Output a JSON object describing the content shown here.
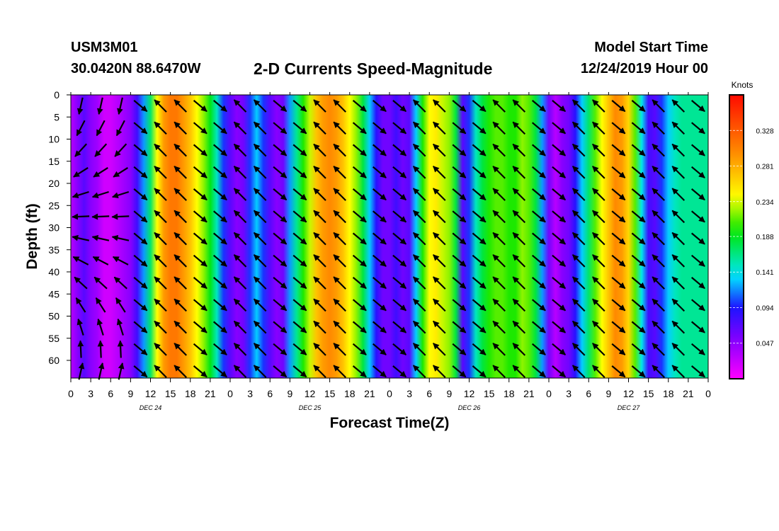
{
  "header": {
    "station": "USM3M01",
    "coords": "30.0420N 88.6470W",
    "title": "2-D Currents Speed-Magnitude",
    "model_start_label": "Model Start Time",
    "model_start_value": "12/24/2019 Hour 00"
  },
  "chart_data": {
    "type": "heatmap",
    "title": "2-D Currents Speed-Magnitude",
    "xlabel": "Forecast Time(Z)",
    "ylabel": "Depth (ft)",
    "x_ticks": [
      "0",
      "3",
      "6",
      "9",
      "12",
      "15",
      "18",
      "21",
      "0",
      "3",
      "6",
      "9",
      "12",
      "15",
      "18",
      "21",
      "0",
      "3",
      "6",
      "9",
      "12",
      "15",
      "18",
      "21",
      "0",
      "3",
      "6",
      "9",
      "12",
      "15",
      "18",
      "21",
      "0"
    ],
    "x_hours": [
      0,
      3,
      6,
      9,
      12,
      15,
      18,
      21,
      24,
      27,
      30,
      33,
      36,
      39,
      42,
      45,
      48,
      51,
      54,
      57,
      60,
      63,
      66,
      69,
      72,
      75,
      78,
      81,
      84,
      87,
      90,
      93,
      96
    ],
    "date_labels": [
      "DEC 24",
      "DEC 25",
      "DEC 26",
      "DEC 27"
    ],
    "date_label_hours": [
      12,
      36,
      60,
      84
    ],
    "xlim_hours": [
      0,
      96
    ],
    "y_ticks": [
      "0",
      "5",
      "10",
      "15",
      "20",
      "25",
      "30",
      "35",
      "40",
      "45",
      "50",
      "55",
      "60"
    ],
    "y_tick_values": [
      0,
      5,
      10,
      15,
      20,
      25,
      30,
      35,
      40,
      45,
      50,
      55,
      60
    ],
    "ylim": [
      0,
      64
    ],
    "y_inverted": true,
    "colorbar": {
      "unit": "Knots",
      "labels": [
        "0.328",
        "0.281",
        "0.234",
        "0.188",
        "0.141",
        "0.094",
        "0.047"
      ],
      "values": [
        0.328,
        0.281,
        0.234,
        0.188,
        0.141,
        0.094,
        0.047
      ],
      "range": [
        0,
        0.375
      ]
    },
    "speed_profile": {
      "hours": [
        0,
        1,
        2,
        3,
        4,
        5,
        6,
        7,
        8,
        9,
        10,
        11,
        12,
        13,
        14,
        15,
        16,
        17,
        18,
        19,
        20,
        21,
        22,
        23,
        24,
        25,
        26,
        27,
        28,
        29,
        30,
        31,
        32,
        33,
        34,
        35,
        36,
        37,
        38,
        39,
        40,
        41,
        42,
        43,
        44,
        45,
        46,
        47,
        48,
        49,
        50,
        51,
        52,
        53,
        54,
        55,
        56,
        57,
        58,
        59,
        60,
        61,
        62,
        63,
        64,
        65,
        66,
        67,
        68,
        69,
        70,
        71,
        72,
        73,
        74,
        75,
        76,
        77,
        78,
        79,
        80,
        81,
        82,
        83,
        84,
        85,
        86,
        87,
        88,
        89,
        90,
        91,
        92,
        93,
        94,
        95,
        96
      ],
      "knots": [
        0.03,
        0.05,
        0.07,
        0.05,
        0.04,
        0.02,
        0.02,
        0.03,
        0.04,
        0.05,
        0.08,
        0.12,
        0.17,
        0.24,
        0.29,
        0.31,
        0.31,
        0.29,
        0.27,
        0.24,
        0.22,
        0.19,
        0.15,
        0.1,
        0.07,
        0.05,
        0.06,
        0.1,
        0.13,
        0.1,
        0.07,
        0.05,
        0.06,
        0.12,
        0.16,
        0.2,
        0.23,
        0.27,
        0.29,
        0.3,
        0.29,
        0.27,
        0.24,
        0.22,
        0.18,
        0.13,
        0.09,
        0.06,
        0.06,
        0.08,
        0.06,
        0.07,
        0.13,
        0.2,
        0.24,
        0.25,
        0.23,
        0.22,
        0.18,
        0.07,
        0.1,
        0.15,
        0.18,
        0.2,
        0.21,
        0.21,
        0.2,
        0.2,
        0.22,
        0.21,
        0.18,
        0.12,
        0.06,
        0.03,
        0.05,
        0.06,
        0.09,
        0.13,
        0.17,
        0.21,
        0.24,
        0.27,
        0.3,
        0.29,
        0.26,
        0.21,
        0.14,
        0.08,
        0.07,
        0.1,
        0.13,
        0.15,
        0.16,
        0.16,
        0.16,
        0.16,
        0.16
      ]
    },
    "arrows_note": "current direction vectors drawn every 3 hours at 5 ft depth intervals"
  }
}
